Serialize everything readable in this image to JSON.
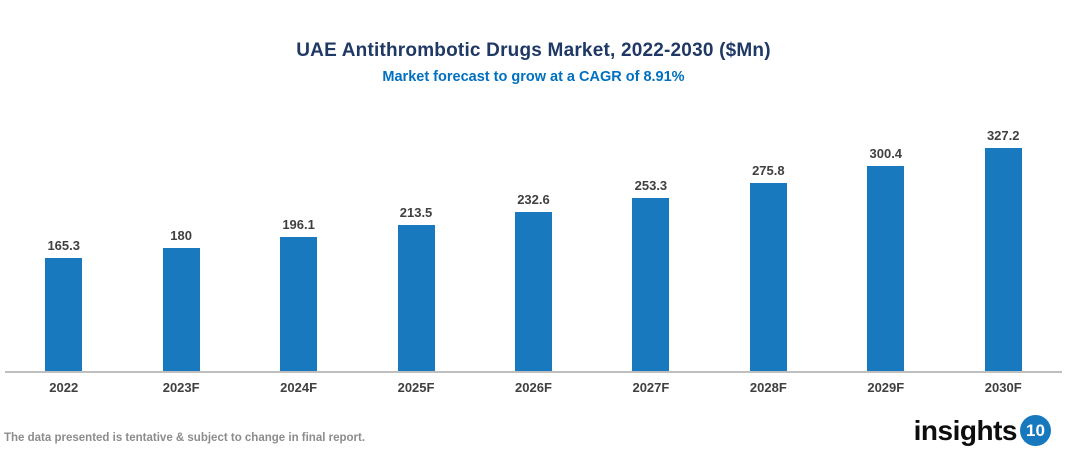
{
  "header": {
    "title": "UAE Antithrombotic Drugs Market, 2022-2030 ($Mn)",
    "subtitle": "Market forecast to grow at a CAGR of 8.91%"
  },
  "chart_data": {
    "type": "bar",
    "title": "UAE Antithrombotic Drugs Market, 2022-2030 ($Mn)",
    "subtitle": "Market forecast to grow at a CAGR of 8.91%",
    "categories": [
      "2022",
      "2023F",
      "2024F",
      "2025F",
      "2026F",
      "2027F",
      "2028F",
      "2029F",
      "2030F"
    ],
    "values": [
      165.3,
      180,
      196.1,
      213.5,
      232.6,
      253.3,
      275.8,
      300.4,
      327.2
    ],
    "value_labels": [
      "165.3",
      "180",
      "196.1",
      "213.5",
      "232.6",
      "253.3",
      "275.8",
      "300.4",
      "327.2"
    ],
    "xlabel": "",
    "ylabel": "",
    "ylim": [
      0,
      327.2
    ],
    "grid": false,
    "legend": false,
    "cagr_percent": "8.91%",
    "unit": "$Mn"
  },
  "colors": {
    "bar_fill": "#1879BE",
    "title_text": "#1F3864",
    "subtitle_text": "#0070C0",
    "axis_line": "#BFBFBF",
    "label_text": "#404040",
    "disclaimer_text": "#8C8C8C",
    "logo_badge_fill": "#1778BE"
  },
  "footer": {
    "disclaimer": "The data presented is tentative & subject to change in final report.",
    "logo_text": "insights",
    "logo_badge": "10"
  }
}
